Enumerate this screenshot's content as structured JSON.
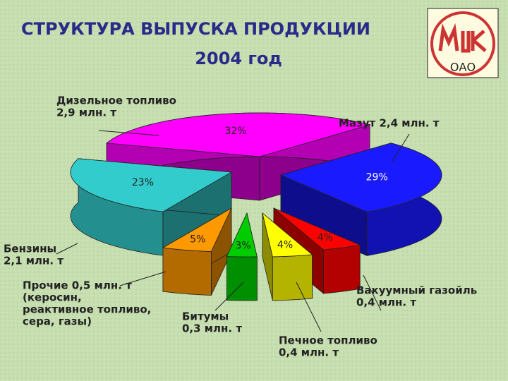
{
  "chart_data": {
    "type": "pie",
    "title": "СТРУКТУРА ВЫПУСКА ПРОДУКЦИИ",
    "subtitle": "2004 год",
    "logo": "ОАО",
    "categories": [
      [
        "Дизельное топливо",
        "2,9 млн. т"
      ],
      [
        "Мазут 2,4 млн. т"
      ],
      [
        "Вакуумный газойль",
        "0,4 млн. т"
      ],
      [
        "Печное топливо",
        "0,4 млн. т"
      ],
      [
        "Битумы",
        "0,3 млн. т"
      ],
      [
        "Прочие 0,5 млн. т",
        "(керосин,",
        "реактивное топливо,",
        "сера, газы)"
      ],
      [
        "Бензины",
        "2,1 млн. т"
      ]
    ],
    "values": [
      32,
      29,
      4,
      4,
      3,
      5,
      23
    ],
    "value_labels": [
      "32%",
      "29%",
      "4%",
      "4%",
      "3%",
      "5%",
      "23%"
    ],
    "colors": [
      "#ff00ff",
      "#1a1aff",
      "#ff0000",
      "#ffff00",
      "#00cc00",
      "#ff9900",
      "#33cccc"
    ]
  }
}
